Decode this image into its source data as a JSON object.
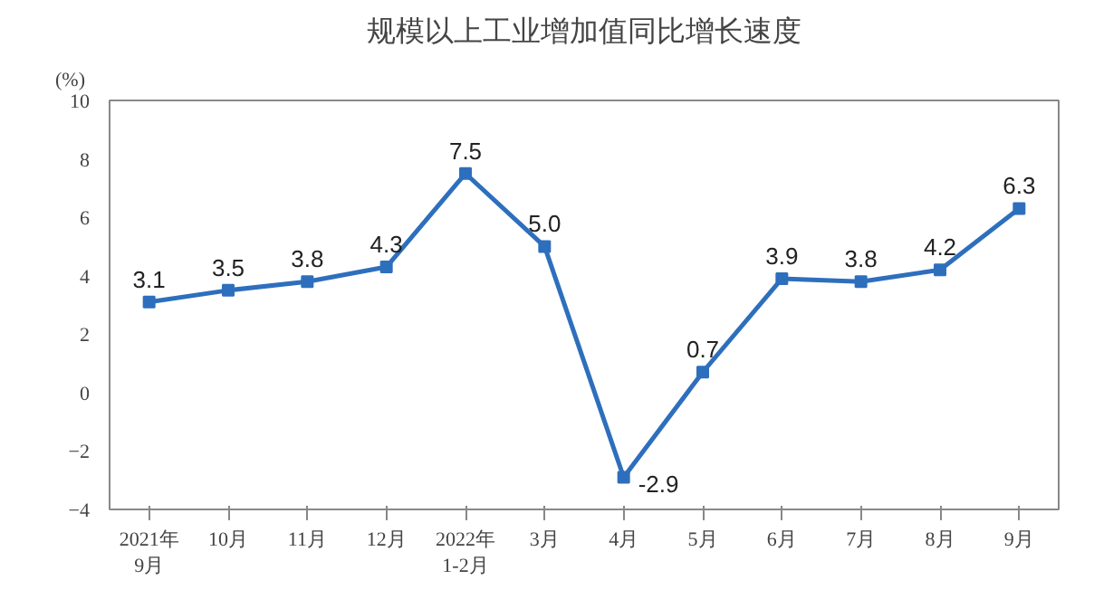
{
  "chart_data": {
    "type": "line",
    "title": "规模以上工业增加值同比增长速度",
    "ylabel": "(%)",
    "categories": [
      "2021年\n9月",
      "10月",
      "11月",
      "12月",
      "2022年\n1-2月",
      "3月",
      "4月",
      "5月",
      "6月",
      "7月",
      "8月",
      "9月"
    ],
    "series": [
      {
        "color": "#2e6fbd",
        "values": [
          3.1,
          3.5,
          3.8,
          4.3,
          7.5,
          5.0,
          -2.9,
          0.7,
          3.9,
          3.8,
          4.2,
          6.3
        ]
      }
    ],
    "value_labels": [
      "3.1",
      "3.5",
      "3.8",
      "4.3",
      "7.5",
      "5.0",
      "-2.9",
      "0.7",
      "3.9",
      "3.8",
      "4.2",
      "6.3"
    ],
    "ylim": [
      -4,
      10
    ],
    "yticks": [
      -4,
      -2,
      0,
      2,
      4,
      6,
      8,
      10
    ],
    "grid": false,
    "marker": "square",
    "line_style": "solid"
  }
}
